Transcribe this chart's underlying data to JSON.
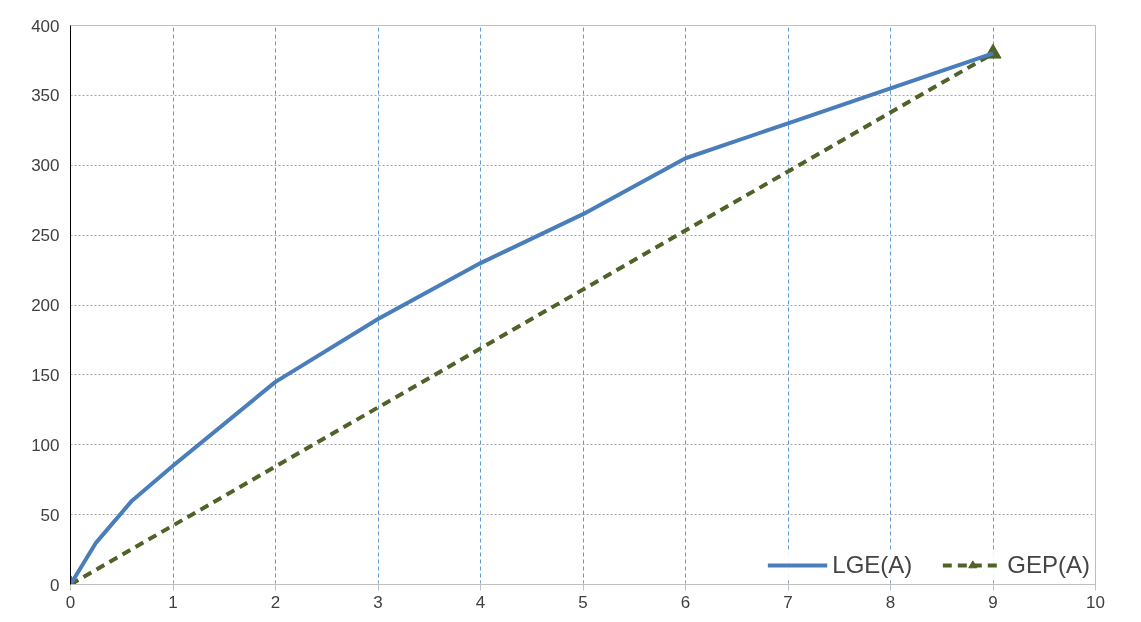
{
  "chart_data": {
    "type": "line",
    "xlim": [
      0,
      10
    ],
    "xticks": [
      0,
      1,
      2,
      3,
      4,
      5,
      6,
      7,
      8,
      9,
      10
    ],
    "ylim": [
      0,
      400
    ],
    "yticks": [
      0,
      50,
      100,
      150,
      200,
      250,
      300,
      350,
      400
    ],
    "grid": true,
    "legend": "bottom right",
    "series": [
      {
        "name": "LGE(A)",
        "color": "#4a7ebb",
        "x": [
          0,
          0.25,
          0.6,
          1,
          2,
          3,
          4,
          5,
          6,
          7,
          8,
          9
        ],
        "values": [
          0,
          30,
          60,
          85,
          145,
          190,
          230,
          265,
          305,
          330,
          355,
          380
        ],
        "line_style": "solid",
        "marker": "none"
      },
      {
        "name": "GEP(A)",
        "color": "#4f6228",
        "x": [
          0,
          9
        ],
        "values": [
          0,
          380
        ],
        "line_style": "dashed",
        "marker": "triangle"
      }
    ]
  }
}
